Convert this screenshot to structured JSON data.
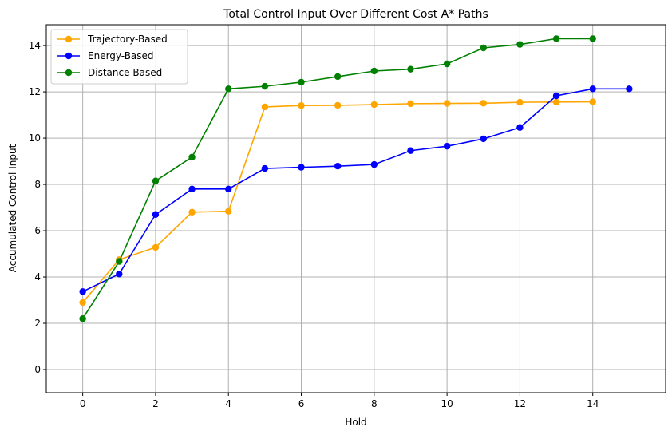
{
  "chart_data": {
    "type": "line",
    "title": "Total Control Input Over Different Cost A* Paths",
    "xlabel": "Hold",
    "ylabel": "Accumulated Control Input",
    "xlim": [
      -1,
      16
    ],
    "ylim": [
      -1,
      14.9
    ],
    "x_ticks": [
      0,
      2,
      4,
      6,
      8,
      10,
      12,
      14
    ],
    "y_ticks": [
      0,
      2,
      4,
      6,
      8,
      10,
      12,
      14
    ],
    "grid": true,
    "legend_position": "top-left",
    "series": [
      {
        "name": "Trajectory-Based",
        "color": "#ffa500",
        "x": [
          0,
          1,
          2,
          3,
          4,
          5,
          6,
          7,
          8,
          9,
          10,
          11,
          12,
          13,
          14
        ],
        "values": [
          2.9,
          4.75,
          5.28,
          6.8,
          6.84,
          11.35,
          11.41,
          11.42,
          11.45,
          11.49,
          11.5,
          11.51,
          11.55,
          11.56,
          11.57
        ]
      },
      {
        "name": "Energy-Based",
        "color": "#0000ff",
        "x": [
          0,
          1,
          2,
          3,
          4,
          5,
          6,
          7,
          8,
          9,
          10,
          11,
          12,
          13,
          14,
          15
        ],
        "values": [
          3.37,
          4.13,
          6.7,
          7.8,
          7.8,
          8.69,
          8.74,
          8.79,
          8.86,
          9.46,
          9.65,
          9.97,
          10.46,
          11.83,
          12.13,
          12.13
        ]
      },
      {
        "name": "Distance-Based",
        "color": "#008000",
        "x": [
          0,
          1,
          2,
          3,
          4,
          5,
          6,
          7,
          8,
          9,
          10,
          11,
          12,
          13,
          14
        ],
        "values": [
          2.2,
          4.67,
          8.15,
          9.18,
          12.13,
          12.24,
          12.42,
          12.66,
          12.9,
          12.98,
          13.21,
          13.9,
          14.05,
          14.3,
          14.3
        ]
      }
    ]
  }
}
